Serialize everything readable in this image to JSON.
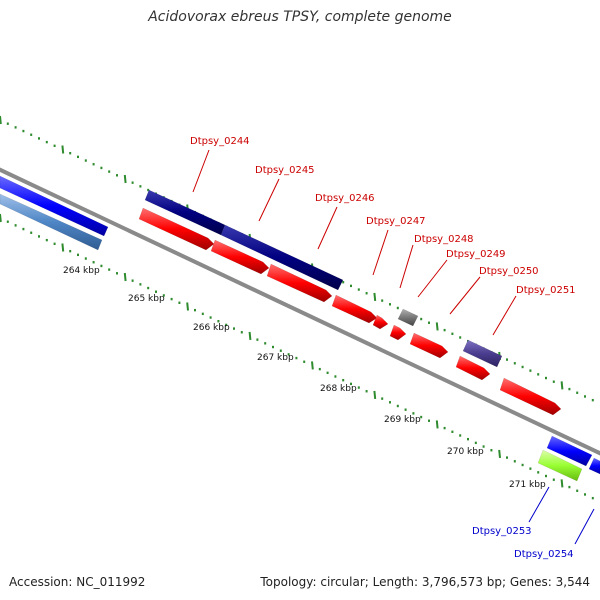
{
  "title": "Acidovorax ebreus TPSY, complete genome",
  "footer": {
    "accession": "Accession: NC_011992",
    "summary": "Topology: circular; Length: 3,796,573 bp; Genes: 3,544"
  },
  "colors": {
    "backbone": "#8a8a8a",
    "ticks": "#2e8b2e",
    "label_red": "#cc0000",
    "label_blue": "#0000cc",
    "gene_red": "#ff0000",
    "gene_navy": "#000080",
    "gene_blue": "#0000ff",
    "gene_steel": "#4f86c6",
    "gene_gray": "#777777",
    "gene_slate": "#4b3d8f",
    "gene_lime": "#99ff33"
  },
  "scale_labels": [
    "264 kbp",
    "265 kbp",
    "266 kbp",
    "267 kbp",
    "268 kbp",
    "269 kbp",
    "270 kbp",
    "271 kbp"
  ],
  "gene_labels": {
    "Dtpsy_0244": "Dtpsy_0244",
    "Dtpsy_0245": "Dtpsy_0245",
    "Dtpsy_0246": "Dtpsy_0246",
    "Dtpsy_0247": "Dtpsy_0247",
    "Dtpsy_0248": "Dtpsy_0248",
    "Dtpsy_0249": "Dtpsy_0249",
    "Dtpsy_0250": "Dtpsy_0250",
    "Dtpsy_0251": "Dtpsy_0251",
    "Dtpsy_0253": "Dtpsy_0253",
    "Dtpsy_0254": "Dtpsy_0254"
  }
}
